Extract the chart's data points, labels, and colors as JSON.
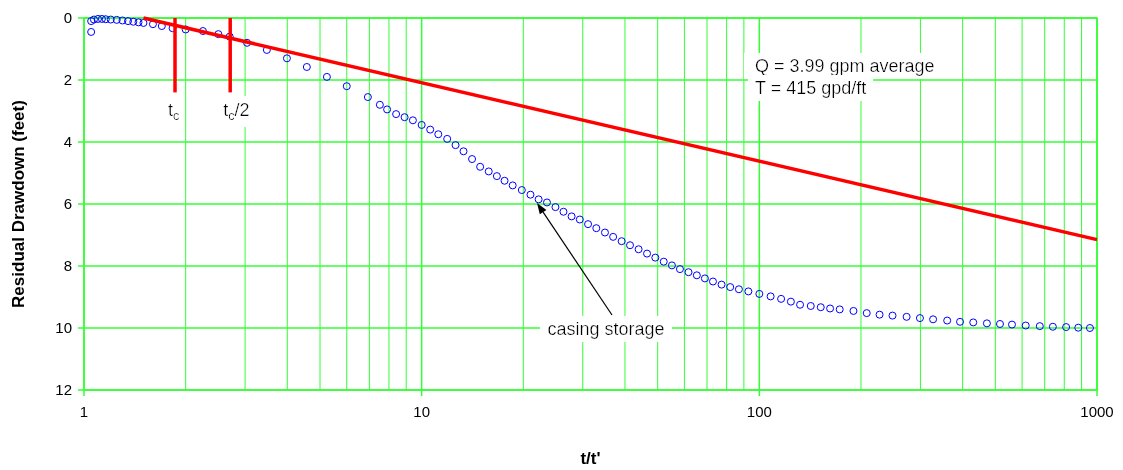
{
  "chart_data": {
    "type": "scatter",
    "xlabel": "t/t'",
    "ylabel": "Residual Drawdown (feet)",
    "log": "x",
    "xlim": [
      1,
      1000
    ],
    "ylim": [
      12,
      0
    ],
    "xticks": [
      1,
      {
        "value": 2,
        "label": null
      },
      {
        "value": 3,
        "label": null
      },
      {
        "value": 4,
        "label": null
      },
      {
        "value": 5,
        "label": null
      },
      {
        "value": 6,
        "label": null
      },
      {
        "value": 7,
        "label": null
      },
      {
        "value": 8,
        "label": null
      },
      {
        "value": 9,
        "label": null
      },
      10,
      {
        "value": 20,
        "label": null
      },
      {
        "value": 30,
        "label": null
      },
      {
        "value": 40,
        "label": null
      },
      {
        "value": 50,
        "label": null
      },
      {
        "value": 60,
        "label": null
      },
      {
        "value": 70,
        "label": null
      },
      {
        "value": 80,
        "label": null
      },
      {
        "value": 90,
        "label": null
      },
      100,
      {
        "value": 200,
        "label": null
      },
      {
        "value": 300,
        "label": null
      },
      {
        "value": 400,
        "label": null
      },
      {
        "value": 500,
        "label": null
      },
      {
        "value": 600,
        "label": null
      },
      {
        "value": 700,
        "label": null
      },
      {
        "value": 800,
        "label": null
      },
      {
        "value": 900,
        "label": null
      },
      1000
    ],
    "yticks": [
      0,
      2,
      4,
      6,
      8,
      10,
      12
    ],
    "grid": true,
    "series": [
      {
        "color": "#0000ff",
        "marker": "circle",
        "x": [
          1.05,
          1.05,
          1.07,
          1.1,
          1.13,
          1.16,
          1.2,
          1.25,
          1.3,
          1.35,
          1.4,
          1.45,
          1.5,
          1.6,
          1.7,
          1.83,
          2.0,
          2.25,
          2.5,
          2.7,
          3.04,
          3.48,
          3.99,
          4.57,
          5.24,
          6.0,
          6.93,
          7.52,
          7.9,
          8.4,
          8.9,
          9.42,
          10,
          10.6,
          11.2,
          11.9,
          12.6,
          13.3,
          14.1,
          14.9,
          15.8,
          16.7,
          17.6,
          18.6,
          19.8,
          21,
          22.2,
          23.5,
          24.9,
          26.3,
          27.8,
          29.4,
          31.1,
          32.9,
          34.9,
          36.9,
          39.1,
          41.4,
          43.9,
          46.5,
          49.2,
          52.1,
          55.1,
          58.2,
          61.7,
          65.3,
          69,
          72.9,
          77.3,
          82,
          87,
          92.8,
          100,
          108,
          116,
          124,
          132,
          142,
          152,
          162,
          173,
          190,
          208,
          227,
          248,
          273,
          299,
          327,
          360,
          393,
          430,
          472,
          516,
          560,
          615,
          677,
          740,
          810,
          880,
          953
        ],
        "values": [
          0.45,
          0.1,
          0.05,
          0.03,
          0.03,
          0.04,
          0.05,
          0.06,
          0.08,
          0.1,
          0.12,
          0.14,
          0.16,
          0.2,
          0.26,
          0.33,
          0.37,
          0.42,
          0.52,
          0.6,
          0.8,
          1.03,
          1.3,
          1.58,
          1.9,
          2.2,
          2.55,
          2.8,
          2.95,
          3.1,
          3.2,
          3.3,
          3.45,
          3.6,
          3.75,
          3.9,
          4.1,
          4.3,
          4.55,
          4.8,
          4.95,
          5.1,
          5.25,
          5.4,
          5.55,
          5.7,
          5.85,
          5.95,
          6.1,
          6.25,
          6.4,
          6.5,
          6.65,
          6.78,
          6.92,
          7.06,
          7.2,
          7.33,
          7.46,
          7.6,
          7.73,
          7.86,
          7.98,
          8.1,
          8.2,
          8.3,
          8.4,
          8.5,
          8.6,
          8.68,
          8.75,
          8.82,
          8.9,
          8.98,
          9.06,
          9.15,
          9.25,
          9.29,
          9.33,
          9.37,
          9.4,
          9.45,
          9.52,
          9.57,
          9.6,
          9.64,
          9.68,
          9.72,
          9.76,
          9.8,
          9.82,
          9.85,
          9.87,
          9.89,
          9.92,
          9.94,
          9.96,
          9.97,
          9.99,
          10.0
        ]
      },
      {
        "type": "line",
        "color": "#ff0000",
        "x": [
          1.5,
          1000
        ],
        "values": [
          0,
          7.15
        ]
      },
      {
        "type": "line",
        "name": "t$_{c}$",
        "color": "#ff0000",
        "x": [
          1.86,
          1.86
        ],
        "values": [
          0,
          2.4
        ]
      },
      {
        "type": "line",
        "name": "t$_{c}$/2",
        "color": "#ff0000",
        "x": [
          2.71,
          2.71
        ],
        "values": [
          0,
          2.4
        ]
      }
    ],
    "annotations": [
      "Q = 3.99 gpm average",
      "T = 415 gpd/ft",
      "casing storage"
    ]
  }
}
